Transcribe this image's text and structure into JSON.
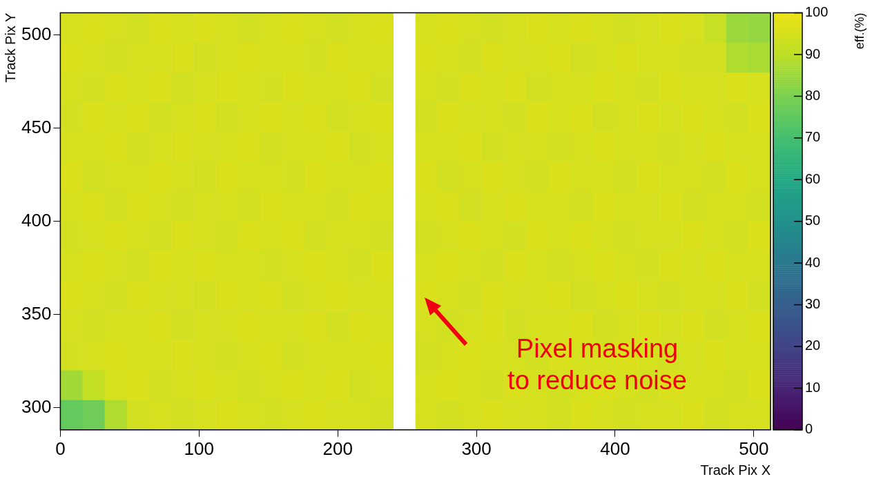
{
  "chart_data": {
    "type": "heatmap",
    "xlabel": "Track Pix X",
    "ylabel": "Track Pix Y",
    "clabel": "eff.(%)",
    "xlim": [
      0,
      512
    ],
    "xticks": [
      0,
      100,
      200,
      300,
      400,
      500
    ],
    "ylim": [
      288,
      512
    ],
    "yticks": [
      300,
      350,
      400,
      450,
      500
    ],
    "clim": [
      0,
      100
    ],
    "cticks": [
      0,
      10,
      20,
      30,
      40,
      50,
      60,
      70,
      80,
      90,
      100
    ],
    "x": [
      8,
      24,
      40,
      56,
      72,
      88,
      104,
      120,
      136,
      152,
      168,
      184,
      200,
      216,
      232,
      248,
      264,
      280,
      296,
      312,
      328,
      344,
      360,
      376,
      392,
      408,
      424,
      440,
      456,
      472,
      488,
      504
    ],
    "y": [
      504,
      488,
      472,
      456,
      440,
      424,
      408,
      392,
      376,
      360,
      344,
      328,
      312,
      296
    ],
    "cells": [
      [
        95,
        96,
        95,
        94,
        96,
        95,
        96,
        95,
        94,
        95,
        96,
        95,
        94,
        95,
        96,
        null,
        95,
        96,
        95,
        94,
        95,
        96,
        95,
        96,
        95,
        94,
        95,
        96,
        95,
        92,
        85,
        84
      ],
      [
        96,
        95,
        94,
        95,
        95,
        96,
        94,
        95,
        96,
        95,
        95,
        94,
        96,
        95,
        95,
        null,
        96,
        95,
        94,
        96,
        95,
        95,
        96,
        94,
        95,
        96,
        95,
        95,
        94,
        94,
        88,
        87
      ],
      [
        95,
        94,
        96,
        95,
        96,
        94,
        95,
        96,
        95,
        94,
        96,
        95,
        95,
        96,
        94,
        null,
        95,
        94,
        96,
        95,
        96,
        94,
        95,
        95,
        96,
        95,
        94,
        96,
        95,
        95,
        96,
        95
      ],
      [
        94,
        96,
        95,
        96,
        94,
        95,
        96,
        94,
        95,
        96,
        95,
        96,
        94,
        95,
        96,
        null,
        94,
        96,
        95,
        95,
        94,
        96,
        95,
        96,
        94,
        95,
        96,
        95,
        96,
        95,
        94,
        96
      ],
      [
        95,
        95,
        96,
        94,
        95,
        96,
        95,
        95,
        96,
        94,
        95,
        95,
        96,
        94,
        95,
        null,
        95,
        95,
        96,
        94,
        95,
        95,
        94,
        95,
        96,
        95,
        95,
        94,
        95,
        96,
        95,
        95
      ],
      [
        96,
        94,
        95,
        95,
        96,
        95,
        94,
        96,
        95,
        95,
        94,
        96,
        95,
        95,
        96,
        null,
        96,
        94,
        95,
        96,
        95,
        94,
        96,
        95,
        95,
        94,
        96,
        95,
        95,
        94,
        96,
        95
      ],
      [
        95,
        96,
        94,
        96,
        95,
        94,
        95,
        95,
        94,
        96,
        95,
        95,
        94,
        96,
        95,
        null,
        95,
        96,
        94,
        95,
        96,
        95,
        95,
        94,
        96,
        95,
        95,
        96,
        94,
        95,
        95,
        94
      ],
      [
        94,
        95,
        96,
        95,
        94,
        96,
        95,
        94,
        96,
        95,
        96,
        94,
        95,
        95,
        94,
        null,
        94,
        95,
        96,
        95,
        94,
        96,
        95,
        96,
        95,
        94,
        95,
        95,
        96,
        95,
        94,
        96
      ],
      [
        95,
        96,
        95,
        94,
        96,
        95,
        96,
        95,
        95,
        94,
        95,
        96,
        95,
        94,
        96,
        null,
        95,
        96,
        95,
        94,
        96,
        95,
        94,
        95,
        96,
        95,
        94,
        96,
        95,
        96,
        95,
        95
      ],
      [
        96,
        95,
        94,
        96,
        95,
        95,
        94,
        96,
        95,
        96,
        94,
        95,
        96,
        95,
        95,
        null,
        96,
        95,
        94,
        96,
        95,
        95,
        96,
        94,
        95,
        96,
        95,
        94,
        95,
        95,
        96,
        94
      ],
      [
        95,
        94,
        95,
        95,
        96,
        94,
        95,
        95,
        96,
        95,
        95,
        96,
        94,
        96,
        95,
        null,
        95,
        94,
        95,
        96,
        94,
        95,
        95,
        96,
        94,
        95,
        96,
        95,
        96,
        94,
        95,
        96
      ],
      [
        94,
        95,
        96,
        95,
        95,
        96,
        95,
        94,
        95,
        96,
        94,
        95,
        95,
        95,
        96,
        null,
        94,
        95,
        96,
        95,
        95,
        94,
        96,
        95,
        95,
        96,
        95,
        94,
        95,
        96,
        95,
        95
      ],
      [
        86,
        91,
        95,
        96,
        94,
        95,
        96,
        95,
        94,
        95,
        96,
        95,
        96,
        94,
        95,
        null,
        95,
        96,
        95,
        94,
        96,
        95,
        94,
        95,
        96,
        95,
        94,
        96,
        95,
        95,
        94,
        96
      ],
      [
        76,
        78,
        88,
        94,
        95,
        94,
        95,
        96,
        95,
        94,
        95,
        96,
        95,
        95,
        94,
        null,
        95,
        94,
        95,
        96,
        95,
        95,
        94,
        96,
        95,
        94,
        95,
        95,
        96,
        94,
        95,
        95
      ]
    ],
    "annotations": [
      "Pixel masking to reduce noise"
    ]
  }
}
